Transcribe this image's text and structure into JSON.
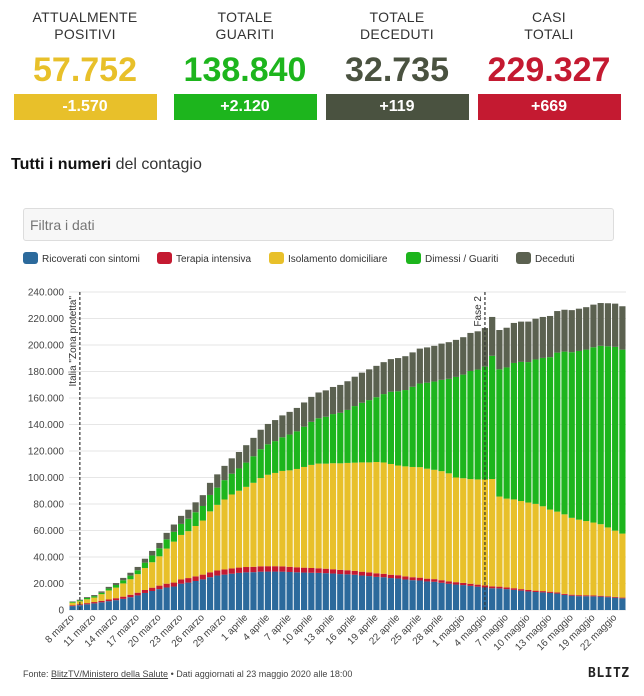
{
  "stats": [
    {
      "label_line1": "ATTUALMENTE",
      "label_line2": "POSITIVI",
      "value": "57.752",
      "delta": "-1.570",
      "color": "#e8c02a"
    },
    {
      "label_line1": "TOTALE",
      "label_line2": "GUARITI",
      "value": "138.840",
      "delta": "+2.120",
      "color": "#1db51d"
    },
    {
      "label_line1": "TOTALE",
      "label_line2": "DECEDUTI",
      "value": "32.735",
      "delta": "+119",
      "color": "#4a5240"
    },
    {
      "label_line1": "CASI",
      "label_line2": "TOTALI",
      "value": "229.327",
      "delta": "+669",
      "color": "#c41a31"
    }
  ],
  "section": {
    "title_bold": "Tutti i numeri",
    "title_rest": " del contagio"
  },
  "filter": {
    "placeholder": "Filtra i dati"
  },
  "legend": [
    {
      "label": "Ricoverati con sintomi",
      "color": "#2c6a9c"
    },
    {
      "label": "Terapia intensiva",
      "color": "#c41a31"
    },
    {
      "label": "Isolamento domiciliare",
      "color": "#e8c02a"
    },
    {
      "label": "Dimessi / Guariti",
      "color": "#1db51d"
    },
    {
      "label": "Deceduti",
      "color": "#5b6150"
    }
  ],
  "footer": {
    "source_prefix": "Fonte: ",
    "source_link": "BlitzTV/Ministero della Salute",
    "source_suffix": " • Dati aggiornati al 23 maggio 2020 alle 18:00"
  },
  "logo": "BLITZ",
  "chart_data": {
    "type": "bar",
    "stacked": true,
    "ylim": [
      0,
      240000
    ],
    "y_ticks": [
      "0",
      "20.000",
      "40.000",
      "60.000",
      "80.000",
      "100.000",
      "120.000",
      "140.000",
      "160.000",
      "180.000",
      "200.000",
      "220.000",
      "240.000"
    ],
    "x_start_label": "8 marzo",
    "categories": [
      "8 marzo",
      "9 marzo",
      "10 marzo",
      "11 marzo",
      "12 marzo",
      "13 marzo",
      "14 marzo",
      "15 marzo",
      "16 marzo",
      "17 marzo",
      "18 marzo",
      "19 marzo",
      "20 marzo",
      "21 marzo",
      "22 marzo",
      "23 marzo",
      "24 marzo",
      "25 marzo",
      "26 marzo",
      "27 marzo",
      "28 marzo",
      "29 marzo",
      "30 marzo",
      "31 marzo",
      "1 aprile",
      "2 aprile",
      "3 aprile",
      "4 aprile",
      "5 aprile",
      "6 aprile",
      "7 aprile",
      "8 aprile",
      "9 aprile",
      "10 aprile",
      "11 aprile",
      "12 aprile",
      "13 aprile",
      "14 aprile",
      "15 aprile",
      "16 aprile",
      "17 aprile",
      "18 aprile",
      "19 aprile",
      "20 aprile",
      "21 aprile",
      "22 aprile",
      "23 aprile",
      "24 aprile",
      "25 aprile",
      "26 aprile",
      "27 aprile",
      "28 aprile",
      "29 aprile",
      "30 aprile",
      "1 maggio",
      "2 maggio",
      "3 maggio",
      "4 maggio",
      "5 maggio",
      "6 maggio",
      "7 maggio",
      "8 maggio",
      "9 maggio",
      "10 maggio",
      "11 maggio",
      "12 maggio",
      "13 maggio",
      "14 maggio",
      "15 maggio",
      "16 maggio",
      "17 maggio",
      "18 maggio",
      "19 maggio",
      "20 maggio",
      "21 maggio",
      "22 maggio",
      "23 maggio"
    ],
    "x_tick_labels": [
      "8 marzo",
      "11 marzo",
      "14 marzo",
      "17 marzo",
      "20 marzo",
      "23 marzo",
      "26 marzo",
      "29 marzo",
      "1 aprile",
      "4 aprile",
      "7 aprile",
      "10 aprile",
      "13 aprile",
      "16 aprile",
      "19 aprile",
      "22 aprile",
      "25 aprile",
      "28 aprile",
      "1 maggio",
      "4 maggio",
      "7 maggio",
      "10 maggio",
      "13 maggio",
      "16 maggio",
      "19 maggio",
      "22 maggio"
    ],
    "annotations": [
      {
        "category": "9 marzo",
        "text": "Italia \"Zona protetta\""
      },
      {
        "category": "4 maggio",
        "text": "Fase 2"
      }
    ],
    "series": [
      {
        "name": "Ricoverati con sintomi",
        "values": [
          2950,
          3650,
          4300,
          5000,
          5800,
          6650,
          7400,
          8400,
          9650,
          11000,
          12850,
          14350,
          15750,
          17000,
          17700,
          19850,
          20700,
          21900,
          23100,
          24750,
          26000,
          26700,
          27400,
          28000,
          28400,
          28550,
          28900,
          29000,
          29000,
          28950,
          28700,
          28450,
          28250,
          28100,
          28000,
          27800,
          27500,
          27100,
          26900,
          26600,
          26000,
          25600,
          25000,
          24750,
          24100,
          23800,
          23000,
          22500,
          22250,
          21550,
          21300,
          20550,
          19800,
          19200,
          18800,
          18200,
          17600,
          17000,
          16400,
          16300,
          15770,
          15200,
          14600,
          14000,
          13600,
          13300,
          12900,
          12400,
          11400,
          10800,
          10450,
          10400,
          10300,
          10100,
          9700,
          9300,
          8800
        ]
      },
      {
        "name": "Terapia intensiva",
        "values": [
          650,
          730,
          880,
          1000,
          1150,
          1300,
          1520,
          1680,
          1850,
          2060,
          2250,
          2500,
          2660,
          2850,
          3000,
          3200,
          3400,
          3500,
          3600,
          3700,
          3850,
          3900,
          3980,
          4020,
          4040,
          4050,
          4070,
          4060,
          4050,
          4000,
          3900,
          3790,
          3700,
          3600,
          3500,
          3350,
          3260,
          3200,
          3100,
          3000,
          2900,
          2800,
          2700,
          2600,
          2500,
          2460,
          2400,
          2250,
          2150,
          2100,
          2000,
          1950,
          1850,
          1800,
          1650,
          1600,
          1550,
          1500,
          1450,
          1330,
          1300,
          1250,
          1150,
          1100,
          1000,
          960,
          900,
          850,
          800,
          760,
          750,
          740,
          700,
          650,
          620,
          600,
          570
        ]
      },
      {
        "name": "Isolamento domiciliare",
        "values": [
          1900,
          2200,
          2900,
          3400,
          5000,
          6800,
          8000,
          10000,
          11700,
          14000,
          16600,
          19200,
          22100,
          26500,
          30900,
          33600,
          35400,
          38000,
          40800,
          46000,
          49500,
          52800,
          55800,
          58000,
          60500,
          63400,
          66600,
          69000,
          70400,
          72000,
          72800,
          74200,
          76000,
          77800,
          79000,
          79300,
          80000,
          80400,
          81000,
          81600,
          82500,
          83000,
          84000,
          84000,
          83600,
          82800,
          83000,
          83200,
          83400,
          83000,
          82500,
          82300,
          81500,
          79000,
          79000,
          79000,
          79400,
          80000,
          81000,
          68000,
          67000,
          67000,
          66500,
          66000,
          65500,
          64000,
          62000,
          61000,
          60000,
          58000,
          57000,
          56000,
          55000,
          54000,
          52000,
          50000,
          48300
        ]
      },
      {
        "name": "Dimessi / Guariti",
        "values": [
          620,
          720,
          1000,
          1050,
          1050,
          1440,
          1970,
          2340,
          2750,
          2940,
          4020,
          5130,
          6070,
          7020,
          7430,
          8320,
          9360,
          10360,
          11000,
          12380,
          13000,
          14600,
          15700,
          16800,
          18300,
          20000,
          21800,
          23000,
          24000,
          25400,
          27000,
          28400,
          30400,
          32500,
          34200,
          35400,
          37100,
          38100,
          40000,
          42700,
          45000,
          47000,
          48900,
          51600,
          54500,
          56000,
          57600,
          60500,
          63100,
          64900,
          66600,
          68900,
          71300,
          75900,
          78200,
          81600,
          82900,
          85200,
          93000,
          96000,
          99000,
          103000,
          105000,
          106000,
          109000,
          112000,
          115000,
          120000,
          122800,
          125000,
          127300,
          129400,
          132300,
          134600,
          136700,
          138700,
          138840
        ]
      },
      {
        "name": "Deceduti",
        "values": [
          370,
          460,
          630,
          830,
          1020,
          1270,
          1440,
          1810,
          2160,
          2500,
          2980,
          3410,
          4030,
          4830,
          5480,
          6080,
          6820,
          7500,
          8170,
          9130,
          10020,
          10780,
          11590,
          12430,
          13150,
          13920,
          14680,
          15360,
          15890,
          16520,
          17130,
          17670,
          18280,
          18850,
          19470,
          19900,
          20470,
          21070,
          21650,
          22170,
          22750,
          23230,
          23660,
          24110,
          24650,
          25080,
          25550,
          25970,
          26380,
          26640,
          26980,
          27360,
          27680,
          27970,
          28240,
          28710,
          28880,
          29080,
          29320,
          29680,
          29960,
          30200,
          30400,
          30560,
          30740,
          30910,
          31110,
          31370,
          31610,
          31760,
          31910,
          32010,
          32170,
          32330,
          32490,
          32620,
          32735
        ]
      }
    ]
  }
}
